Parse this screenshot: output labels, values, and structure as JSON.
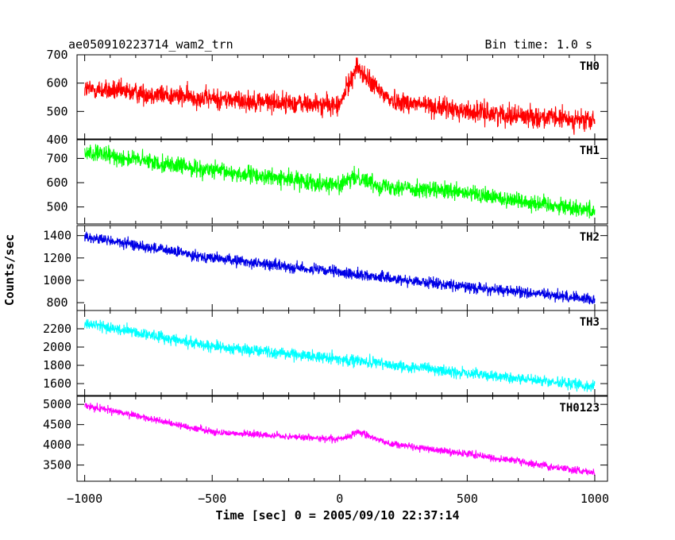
{
  "header": {
    "left_title": "ae050910223714_wam2_trn",
    "right_title": "Bin time: 1.0 s"
  },
  "chart_data": {
    "type": "line",
    "xlabel": "Time [sec] 0 = 2005/09/10 22:37:14",
    "ylabel": "Counts/sec",
    "xlim": [
      -1030,
      1050
    ],
    "x_ticks": [
      -1000,
      -500,
      0,
      500,
      1000
    ],
    "x_tick_labels": [
      "−1000",
      "−500",
      "0",
      "500",
      "1000"
    ],
    "x_range": [
      -1000,
      1000
    ],
    "panels": [
      {
        "name": "TH0",
        "color": "#ff0000",
        "ylim": [
          400,
          700
        ],
        "y_ticks": [
          400,
          500,
          600,
          700
        ],
        "y_tick_labels": [
          "400",
          "500",
          "600",
          "700"
        ],
        "trend": [
          [
            -1000,
            580
          ],
          [
            -500,
            545
          ],
          [
            0,
            520
          ],
          [
            30,
            590
          ],
          [
            70,
            660
          ],
          [
            110,
            610
          ],
          [
            200,
            540
          ],
          [
            500,
            500
          ],
          [
            1000,
            465
          ]
        ],
        "noise": 26
      },
      {
        "name": "TH1",
        "color": "#00ff00",
        "ylim": [
          430,
          780
        ],
        "y_ticks": [
          500,
          600,
          700
        ],
        "y_tick_labels": [
          "500",
          "600",
          "700"
        ],
        "trend": [
          [
            -1000,
            725
          ],
          [
            -500,
            650
          ],
          [
            0,
            590
          ],
          [
            70,
            625
          ],
          [
            150,
            590
          ],
          [
            500,
            555
          ],
          [
            1000,
            485
          ]
        ],
        "noise": 25
      },
      {
        "name": "TH2",
        "color": "#0000e6",
        "ylim": [
          730,
          1490
        ],
        "y_ticks": [
          800,
          1000,
          1200,
          1400
        ],
        "y_tick_labels": [
          "800",
          "1000",
          "1200",
          "1400"
        ],
        "trend": [
          [
            -1000,
            1390
          ],
          [
            -500,
            1200
          ],
          [
            0,
            1070
          ],
          [
            500,
            940
          ],
          [
            1000,
            830
          ]
        ],
        "noise": 35
      },
      {
        "name": "TH3",
        "color": "#00ffff",
        "ylim": [
          1470,
          2400
        ],
        "y_ticks": [
          1600,
          1800,
          2000,
          2200
        ],
        "y_tick_labels": [
          "1600",
          "1800",
          "2000",
          "2200"
        ],
        "trend": [
          [
            -1000,
            2260
          ],
          [
            -500,
            2010
          ],
          [
            0,
            1870
          ],
          [
            500,
            1710
          ],
          [
            1000,
            1570
          ]
        ],
        "noise": 45
      },
      {
        "name": "TH0123",
        "color": "#ff00ff",
        "ylim": [
          3100,
          5200
        ],
        "y_ticks": [
          3500,
          4000,
          4500,
          5000
        ],
        "y_tick_labels": [
          "3500",
          "4000",
          "4500",
          "5000"
        ],
        "trend": [
          [
            -1000,
            4980
          ],
          [
            -500,
            4320
          ],
          [
            0,
            4130
          ],
          [
            30,
            4200
          ],
          [
            70,
            4330
          ],
          [
            130,
            4180
          ],
          [
            200,
            4020
          ],
          [
            500,
            3780
          ],
          [
            1000,
            3300
          ]
        ],
        "noise": 60
      }
    ]
  }
}
